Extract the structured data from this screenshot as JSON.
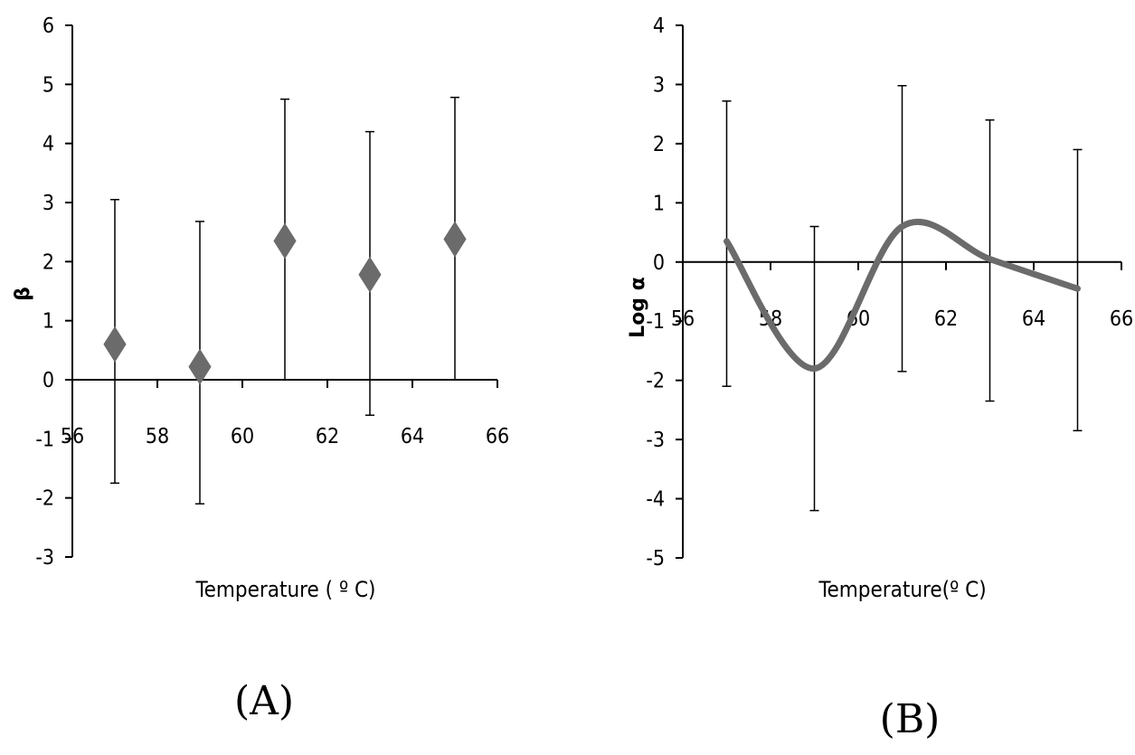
{
  "chart_data": [
    {
      "type": "scatter",
      "panel_label": "(A)",
      "xlabel": "Temperature ( º C)",
      "ylabel": "β",
      "xlim": [
        56,
        66
      ],
      "ylim": [
        -3,
        6
      ],
      "xticks": [
        "56",
        "58",
        "60",
        "62",
        "64",
        "66"
      ],
      "yticks": [
        "-3",
        "-2",
        "-1",
        "0",
        "1",
        "2",
        "3",
        "4",
        "5",
        "6"
      ],
      "marker": "diamond",
      "color": "#6b6b6b",
      "points": [
        {
          "x": 57,
          "y": 0.6,
          "err_low": -1.75,
          "err_high": 3.05
        },
        {
          "x": 59,
          "y": 0.22,
          "err_low": -2.1,
          "err_high": 2.68
        },
        {
          "x": 61,
          "y": 2.35,
          "err_low": 0,
          "err_high": 4.75
        },
        {
          "x": 63,
          "y": 1.78,
          "err_low": -0.6,
          "err_high": 4.2
        },
        {
          "x": 65,
          "y": 2.38,
          "err_low": 0,
          "err_high": 4.78
        }
      ]
    },
    {
      "type": "line",
      "panel_label": "(B)",
      "xlabel": "Temperature(º C)",
      "ylabel": "Log α",
      "xlim": [
        56,
        66
      ],
      "ylim": [
        -5,
        4
      ],
      "xticks": [
        "56",
        "58",
        "60",
        "62",
        "64",
        "66"
      ],
      "yticks": [
        "-5",
        "-4",
        "-3",
        "-2",
        "-1",
        "0",
        "1",
        "2",
        "3",
        "4"
      ],
      "smooth": true,
      "color": "#6b6b6b",
      "points": [
        {
          "x": 57,
          "y": 0.35,
          "err_low": -2.1,
          "err_high": 2.72
        },
        {
          "x": 59,
          "y": -1.8,
          "err_low": -4.2,
          "err_high": 0.6
        },
        {
          "x": 61,
          "y": 0.6,
          "err_low": -1.85,
          "err_high": 2.98
        },
        {
          "x": 63,
          "y": 0.05,
          "err_low": -2.35,
          "err_high": 2.4
        },
        {
          "x": 65,
          "y": -0.45,
          "err_low": -2.85,
          "err_high": 1.9
        }
      ]
    }
  ]
}
